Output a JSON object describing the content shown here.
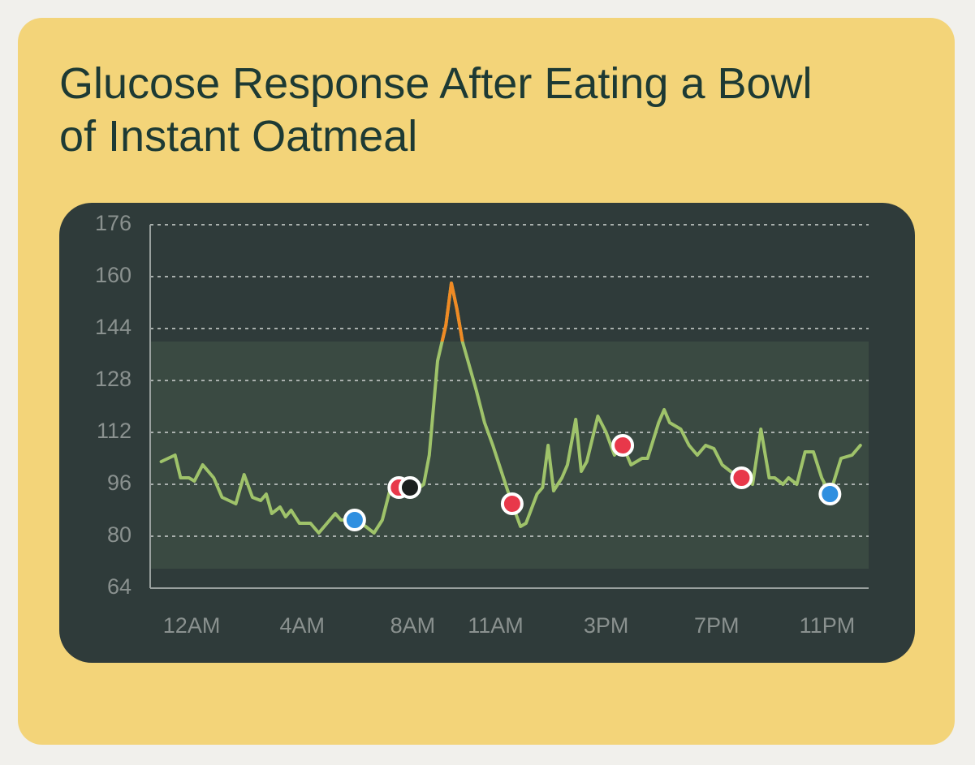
{
  "chart_data": {
    "type": "line",
    "title": "Glucose Response After Eating a Bowl of Instant Oatmeal",
    "x": [
      -1.1,
      -0.6,
      -0.4,
      -0.1,
      0.1,
      0.4,
      0.8,
      1.1,
      1.6,
      1.9,
      2.2,
      2.5,
      2.7,
      2.9,
      3.2,
      3.4,
      3.6,
      3.9,
      4.3,
      4.6,
      4.9,
      5.2,
      5.4,
      5.9,
      6.3,
      6.6,
      6.9,
      7.2,
      7.6,
      8.1,
      8.4,
      8.6,
      8.9,
      9.2,
      9.4,
      9.6,
      9.8,
      10.3,
      10.6,
      10.9,
      11.4,
      11.6,
      11.9,
      12.1,
      12.5,
      12.7,
      12.9,
      13.1,
      13.4,
      13.6,
      13.9,
      14.1,
      14.3,
      14.7,
      15.0,
      15.3,
      15.6,
      15.9,
      16.3,
      16.5,
      16.9,
      17.1,
      17.3,
      17.7,
      18.0,
      18.3,
      18.6,
      18.9,
      19.2,
      19.5,
      19.9,
      20.3,
      20.6,
      20.9,
      21.1,
      21.4,
      21.6,
      21.9,
      22.2,
      22.5,
      22.8,
      23.1,
      23.5,
      23.9,
      24.2
    ],
    "series": [
      {
        "color": "#9fc36a",
        "values": [
          103,
          105,
          98,
          98,
          97,
          102,
          98,
          92,
          90,
          99,
          92,
          91,
          93,
          87,
          89,
          86,
          88,
          84,
          84,
          81,
          84,
          87,
          85,
          85,
          83,
          81,
          85,
          95,
          96,
          94,
          96,
          105,
          134,
          145,
          158,
          150,
          140,
          125,
          115,
          108,
          95,
          90,
          83,
          84,
          93,
          95,
          108,
          94,
          98,
          102,
          116,
          100,
          103,
          117,
          112,
          105,
          108,
          102,
          104,
          104,
          115,
          119,
          115,
          113,
          108,
          105,
          108,
          107,
          102,
          100,
          98,
          96,
          113,
          98,
          98,
          96,
          98,
          96,
          106,
          106,
          98,
          93,
          104,
          105,
          108
        ]
      }
    ],
    "high_color": "#f08a24",
    "range": [
      70,
      140
    ],
    "range_color": "#3a4a42",
    "markers": [
      {
        "x": 5.9,
        "y": 85,
        "color": "#2f8fe0"
      },
      {
        "x": 7.5,
        "y": 95,
        "color": "#e8384a"
      },
      {
        "x": 7.9,
        "y": 95,
        "color": "#1b1f1e"
      },
      {
        "x": 11.6,
        "y": 90,
        "color": "#e8384a"
      },
      {
        "x": 15.6,
        "y": 108,
        "color": "#e8384a"
      },
      {
        "x": 19.9,
        "y": 98,
        "color": "#e8384a"
      },
      {
        "x": 23.1,
        "y": 93,
        "color": "#2f8fe0"
      }
    ],
    "xlim": [
      -1.5,
      24.5
    ],
    "xticks": [
      {
        "value": 0,
        "label": "12AM"
      },
      {
        "value": 4,
        "label": "4AM"
      },
      {
        "value": 8,
        "label": "8AM"
      },
      {
        "value": 11,
        "label": "11AM"
      },
      {
        "value": 15,
        "label": "3PM"
      },
      {
        "value": 19,
        "label": "7PM"
      },
      {
        "value": 23,
        "label": "11PM"
      }
    ],
    "ylim": [
      64,
      176
    ],
    "yticks": [
      64,
      80,
      96,
      112,
      128,
      144,
      160,
      176
    ],
    "grid": true
  }
}
